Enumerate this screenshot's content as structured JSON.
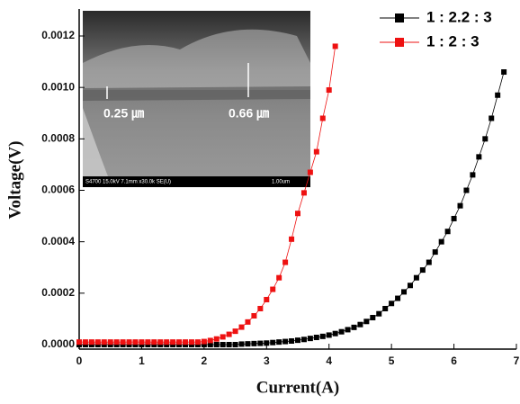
{
  "chart_data": {
    "type": "line",
    "x_label": "Current(A)",
    "y_label": "Voltage(V)",
    "xlim": [
      0,
      7
    ],
    "xticks": [
      0,
      1,
      2,
      3,
      4,
      5,
      6,
      7
    ],
    "ylim": [
      -1.75e-05,
      0.001305
    ],
    "yticks": [
      {
        "value": 0,
        "label": "0.0000"
      },
      {
        "value": 0.0002,
        "label": "0.0002"
      },
      {
        "value": 0.0004,
        "label": "0.0004"
      },
      {
        "value": 0.0006,
        "label": "0.0006"
      },
      {
        "value": 0.0008,
        "label": "0.0008"
      },
      {
        "value": 0.001,
        "label": "0.0010"
      },
      {
        "value": 0.0012,
        "label": "0.0012"
      }
    ],
    "legend": "upper right",
    "series": [
      {
        "name": "1 : 2.2 : 3",
        "color": "#000000",
        "x": [
          0,
          0.1,
          0.2,
          0.3,
          0.4,
          0.5,
          0.6,
          0.7,
          0.8,
          0.9,
          1,
          1.1,
          1.2,
          1.3,
          1.4,
          1.5,
          1.6,
          1.7,
          1.8,
          1.9,
          2,
          2.1,
          2.2,
          2.3,
          2.4,
          2.5,
          2.6,
          2.7,
          2.8,
          2.9,
          3,
          3.1,
          3.2,
          3.3,
          3.4,
          3.5,
          3.6,
          3.7,
          3.8,
          3.9,
          4,
          4.1,
          4.2,
          4.3,
          4.4,
          4.5,
          4.6,
          4.7,
          4.8,
          4.9,
          5,
          5.1,
          5.2,
          5.3,
          5.4,
          5.5,
          5.6,
          5.7,
          5.8,
          5.9,
          6,
          6.1,
          6.2,
          6.3,
          6.4,
          6.5,
          6.6,
          6.7,
          6.8
        ],
        "values": [
          0,
          0,
          0,
          0,
          0,
          0,
          0,
          0,
          0,
          0,
          0,
          0,
          0,
          0,
          0,
          0,
          0,
          0,
          0,
          0,
          0,
          0,
          0,
          0,
          0,
          0,
          2e-06,
          3e-06,
          4e-06,
          5e-06,
          6e-06,
          8e-06,
          1e-05,
          1.2e-05,
          1.4e-05,
          1.7e-05,
          2e-05,
          2.4e-05,
          2.8e-05,
          3.2e-05,
          3.7e-05,
          4.3e-05,
          5e-05,
          5.8e-05,
          6.7e-05,
          7.8e-05,
          9e-05,
          0.000105,
          0.00012,
          0.00014,
          0.00016,
          0.00018,
          0.000205,
          0.00023,
          0.00026,
          0.00029,
          0.00032,
          0.00036,
          0.0004,
          0.00044,
          0.00049,
          0.00054,
          0.0006,
          0.00066,
          0.00073,
          0.0008,
          0.00088,
          0.00097,
          0.00106
        ]
      },
      {
        "name": "1 : 2 : 3",
        "color": "#ee1111",
        "x": [
          0,
          0.1,
          0.2,
          0.3,
          0.4,
          0.5,
          0.6,
          0.7,
          0.8,
          0.9,
          1,
          1.1,
          1.2,
          1.3,
          1.4,
          1.5,
          1.6,
          1.7,
          1.8,
          1.9,
          2,
          2.1,
          2.2,
          2.3,
          2.4,
          2.5,
          2.6,
          2.7,
          2.8,
          2.9,
          3,
          3.1,
          3.2,
          3.3,
          3.4,
          3.5,
          3.6,
          3.7,
          3.8,
          3.9,
          4,
          4.1
        ],
        "values": [
          1e-05,
          1e-05,
          1e-05,
          1e-05,
          1e-05,
          1e-05,
          1e-05,
          1e-05,
          1e-05,
          1e-05,
          1e-05,
          1e-05,
          1e-05,
          1e-05,
          1e-05,
          1e-05,
          1e-05,
          1e-05,
          1e-05,
          1e-05,
          1.2e-05,
          1.6e-05,
          2.2e-05,
          3e-05,
          4e-05,
          5.2e-05,
          6.8e-05,
          8.8e-05,
          0.000112,
          0.00014,
          0.000175,
          0.000215,
          0.00026,
          0.00032,
          0.00041,
          0.00051,
          0.00059,
          0.00067,
          0.00075,
          0.00088,
          0.00099,
          0.00116
        ]
      }
    ],
    "inset_labels": [
      "0.25 ㎛",
      "0.66 ㎛",
      "S4700 15.0kV 7.1mm x30.0k SE(U)",
      "1.00um"
    ]
  }
}
